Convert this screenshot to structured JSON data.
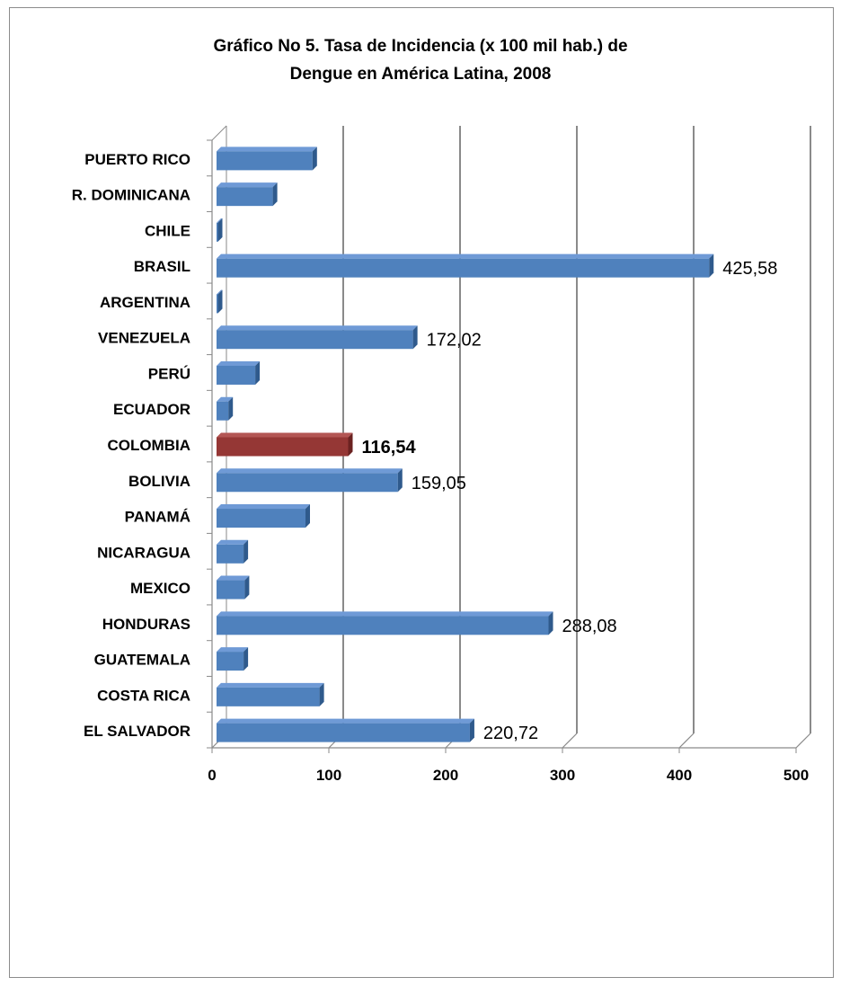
{
  "chart_data": {
    "type": "bar",
    "orientation": "horizontal",
    "title_line1": "Gráfico No 5.  Tasa de Incidencia (x 100 mil hab.) de",
    "title_line2": "Dengue en América Latina, 2008",
    "xlabel": "",
    "ylabel": "",
    "xlim": [
      0,
      500
    ],
    "x_ticks": [
      "0",
      "100",
      "200",
      "300",
      "400",
      "500"
    ],
    "grid": true,
    "categories": [
      "PUERTO RICO",
      "R. DOMINICANA",
      "CHILE",
      "BRASIL",
      "ARGENTINA",
      "VENEZUELA",
      "PERÚ",
      "ECUADOR",
      "COLOMBIA",
      "BOLIVIA",
      "PANAMÁ",
      "NICARAGUA",
      "MEXICO",
      "HONDURAS",
      "GUATEMALA",
      "COSTA RICA",
      "EL SALVADOR"
    ],
    "values": [
      86,
      52,
      0.5,
      425.58,
      0.5,
      172.02,
      37,
      14,
      116.54,
      159.05,
      80,
      27,
      28,
      288.08,
      27,
      92,
      220.72
    ],
    "data_labels": [
      "",
      "",
      "",
      "425,58",
      "",
      "172,02",
      "",
      "",
      "116,54",
      "159,05",
      "",
      "",
      "",
      "288,08",
      "",
      "",
      "220,72"
    ],
    "highlight_category": "COLOMBIA",
    "colors": {
      "bar": "#4f81bd",
      "bar_top": "#6f9ad6",
      "bar_side": "#2f5a8c",
      "highlight": "#953735",
      "highlight_top": "#b35654",
      "highlight_side": "#6b2221",
      "gridline": "#8a8a8a"
    }
  }
}
